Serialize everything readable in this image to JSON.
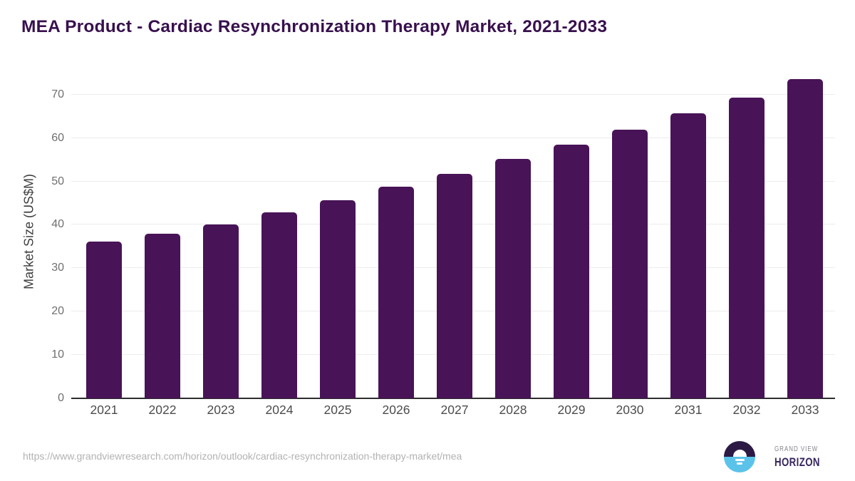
{
  "title": "MEA Product - Cardiac Resynchronization Therapy Market, 2021-2033",
  "chart_data": {
    "type": "bar",
    "categories": [
      "2021",
      "2022",
      "2023",
      "2024",
      "2025",
      "2026",
      "2027",
      "2028",
      "2029",
      "2030",
      "2031",
      "2032",
      "2033"
    ],
    "values": [
      36.2,
      38.0,
      40.1,
      42.8,
      45.6,
      48.7,
      51.7,
      55.1,
      58.4,
      61.9,
      65.6,
      69.3,
      73.5
    ],
    "title": "MEA Product - Cardiac Resynchronization Therapy Market, 2021-2033",
    "xlabel": "",
    "ylabel": "Market Size (US$M)",
    "ylim": [
      0,
      70
    ],
    "yticks": [
      0,
      10,
      20,
      30,
      40,
      50,
      60,
      70
    ],
    "grid": true,
    "legend": "none",
    "bar_color": "#481357"
  },
  "colors": {
    "title": "#38104e",
    "bar": "#481357",
    "gridline": "#ececec",
    "axis_line": "#2d2d2d",
    "x_tick": "#4c4c4c",
    "y_tick": "#6f6f6f",
    "url_text": "#b2b2b2",
    "logo_top_half": "#2c1a45",
    "logo_bottom_half": "#5bc3ea",
    "brand_top_text": "#85858d",
    "brand_bottom_text": "#37265e"
  },
  "footer": {
    "source_url": "https://www.grandviewresearch.com/horizon/outlook/cardiac-resynchronization-therapy-market/mea",
    "brand_line1": "GRAND VIEW",
    "brand_line2": "HORIZON"
  }
}
